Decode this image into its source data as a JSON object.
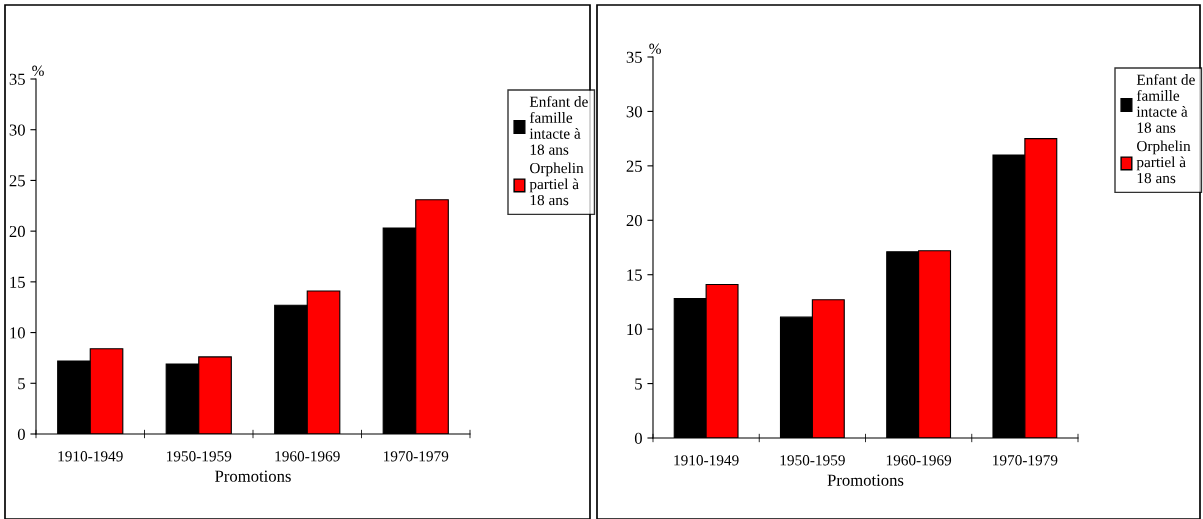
{
  "chart_data": [
    {
      "type": "bar",
      "xlabel": "Promotions",
      "ylabel": "%",
      "categories": [
        "1910-1949",
        "1950-1959",
        "1960-1969",
        "1970-1979"
      ],
      "series": [
        {
          "name": "Enfant de\nfamille\nintacte à\n18 ans",
          "color": "#000000",
          "values": [
            7.2,
            6.9,
            12.7,
            20.3
          ]
        },
        {
          "name": "Orphelin\npartiel à\n18 ans",
          "color": "#ff0000",
          "values": [
            8.4,
            7.6,
            14.1,
            23.1
          ]
        }
      ],
      "ylim": [
        0,
        35
      ],
      "yticks": [
        0,
        5,
        10,
        15,
        20,
        25,
        30,
        35
      ],
      "grid": false,
      "legend": "right"
    },
    {
      "type": "bar",
      "xlabel": "Promotions",
      "ylabel": "%",
      "categories": [
        "1910-1949",
        "1950-1959",
        "1960-1969",
        "1970-1979"
      ],
      "series": [
        {
          "name": "Enfant de\nfamille\nintacte à\n18 ans",
          "color": "#000000",
          "values": [
            12.8,
            11.1,
            17.1,
            26.0
          ]
        },
        {
          "name": "Orphelin\npartiel à\n18 ans",
          "color": "#ff0000",
          "values": [
            14.1,
            12.7,
            17.2,
            27.5
          ]
        }
      ],
      "ylim": [
        0,
        35
      ],
      "yticks": [
        0,
        5,
        10,
        15,
        20,
        25,
        30,
        35
      ],
      "grid": false,
      "legend": "right"
    }
  ]
}
